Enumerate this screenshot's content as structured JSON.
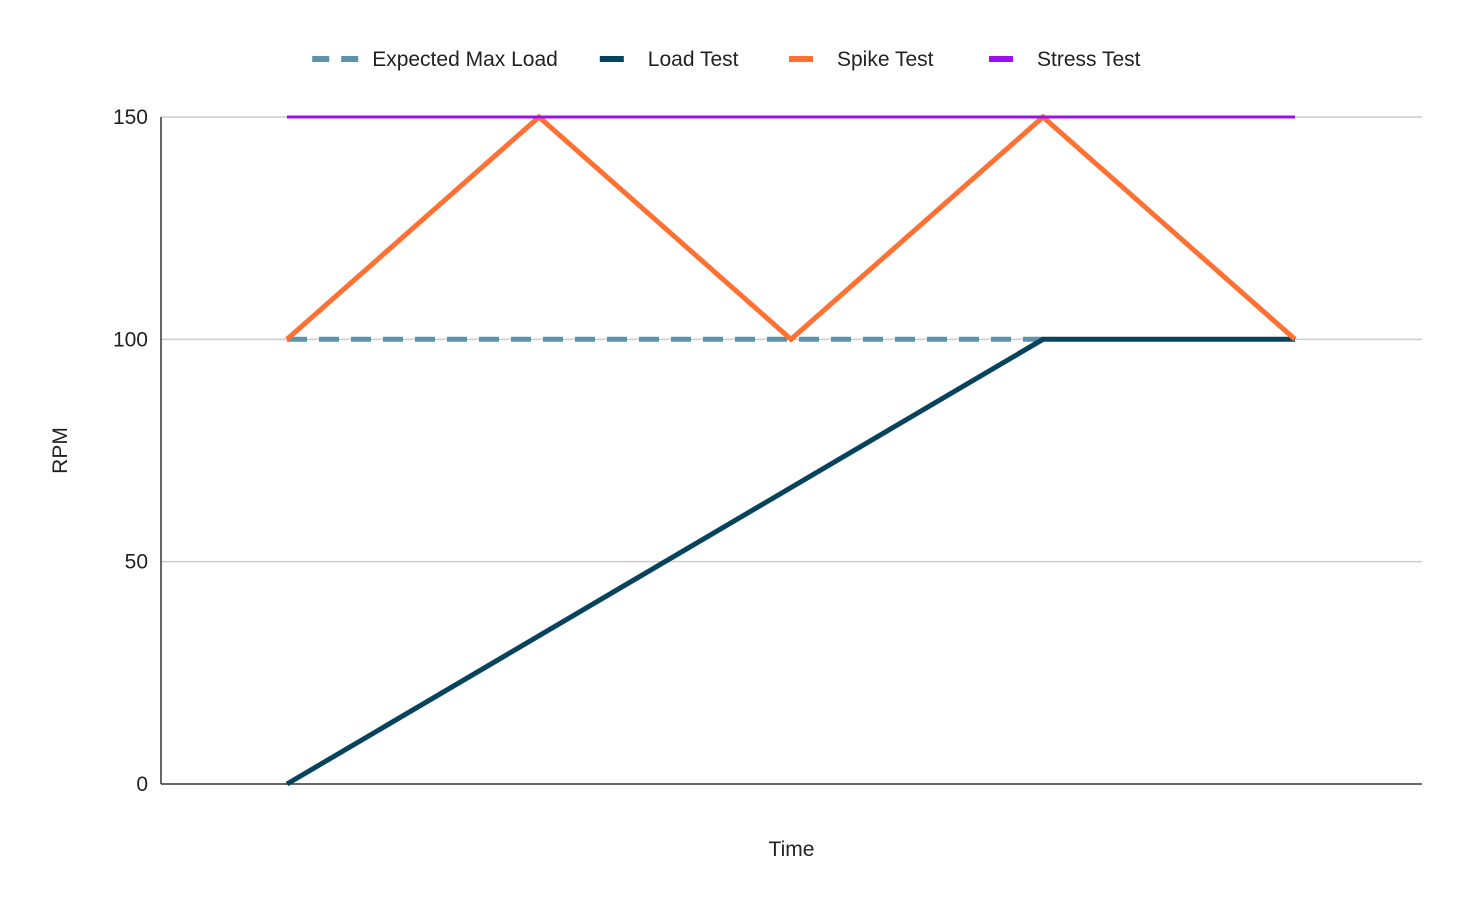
{
  "chart_data": {
    "type": "line",
    "title": "",
    "xlabel": "Time",
    "ylabel": "RPM",
    "ylim": [
      0,
      150
    ],
    "yticks": [
      "0",
      "50",
      "100",
      "150"
    ],
    "grid": true,
    "legend_position": "top",
    "x": [
      0,
      1,
      2,
      3,
      4,
      5,
      6,
      7,
      8
    ],
    "series": [
      {
        "name": "Expected Max Load",
        "color": "#5b93a9",
        "style": "dashed",
        "points": [
          [
            0,
            100
          ],
          [
            6,
            100
          ]
        ]
      },
      {
        "name": "Load Test",
        "color": "#06445d",
        "style": "solid",
        "points": [
          [
            0,
            0
          ],
          [
            6,
            100
          ],
          [
            8,
            100
          ]
        ]
      },
      {
        "name": "Spike Test",
        "color": "#ff7133",
        "style": "solid",
        "points": [
          [
            0,
            100
          ],
          [
            2,
            150
          ],
          [
            4,
            100
          ],
          [
            6,
            150
          ],
          [
            8,
            100
          ]
        ]
      },
      {
        "name": "Stress Test",
        "color": "#9b10f2",
        "style": "solid",
        "points": [
          [
            0,
            150
          ],
          [
            8,
            150
          ]
        ]
      }
    ]
  }
}
